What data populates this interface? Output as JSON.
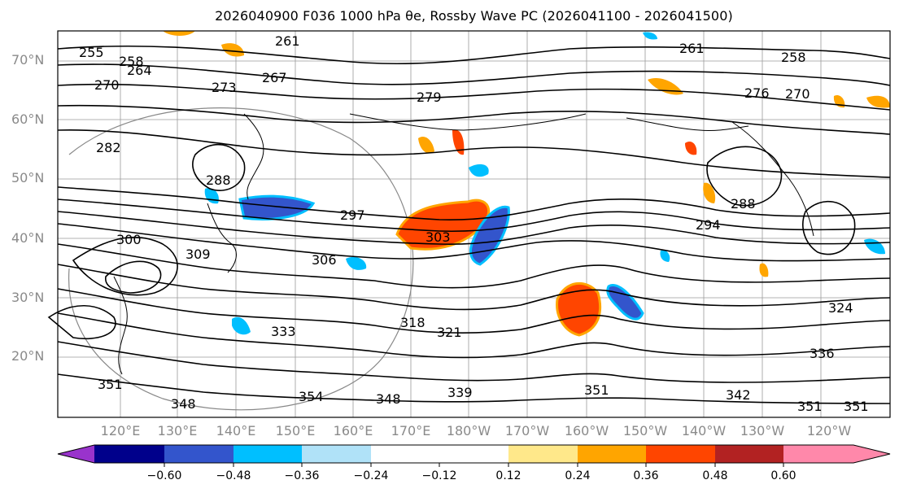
{
  "figure": {
    "title": "2026040900 F036 1000 hPa θe, Rossby Wave PC (2026041100 - 2026041500)"
  },
  "map": {
    "lat_labels": [
      "70°N",
      "60°N",
      "50°N",
      "40°N",
      "30°N",
      "20°N"
    ],
    "lon_labels": [
      "120°E",
      "130°E",
      "140°E",
      "150°E",
      "160°E",
      "170°E",
      "180°W",
      "170°W",
      "160°W",
      "150°W",
      "140°W",
      "130°W",
      "120°W"
    ],
    "contour_labels": [
      "255",
      "258",
      "264",
      "261",
      "267",
      "270",
      "273",
      "279",
      "276",
      "261",
      "258",
      "270",
      "282",
      "288",
      "297",
      "300",
      "303",
      "306",
      "309",
      "288",
      "294",
      "324",
      "318",
      "321",
      "333",
      "336",
      "339",
      "342",
      "348",
      "351",
      "354",
      "351",
      "351",
      "348",
      "351"
    ]
  },
  "colorbar": {
    "tick_labels": [
      "−0.60",
      "−0.48",
      "−0.36",
      "−0.24",
      "−0.12",
      "0.12",
      "0.24",
      "0.36",
      "0.48",
      "0.60"
    ],
    "bins": [
      {
        "color": "#9933cc"
      },
      {
        "color": "#00008b"
      },
      {
        "color": "#3355cc"
      },
      {
        "color": "#00bfff"
      },
      {
        "color": "#b0e2f8"
      },
      {
        "color": "#ffffff"
      },
      {
        "color": "#ffe88a"
      },
      {
        "color": "#ffa500"
      },
      {
        "color": "#ff4500"
      },
      {
        "color": "#b22222"
      },
      {
        "color": "#ff88aa"
      }
    ]
  }
}
